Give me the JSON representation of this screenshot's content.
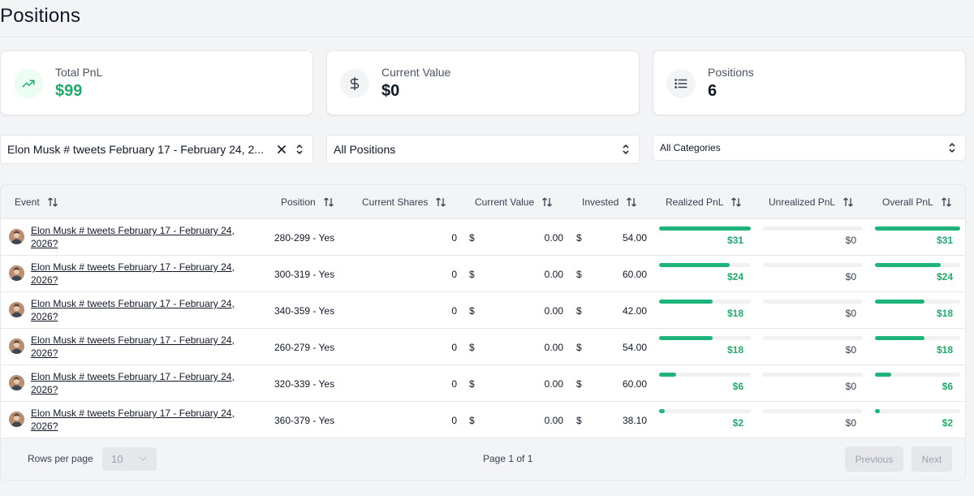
{
  "page": {
    "title": "Positions"
  },
  "stats": {
    "total_pnl": {
      "label": "Total PnL",
      "value": "$99",
      "icon": "trending-up-icon"
    },
    "current_value": {
      "label": "Current Value",
      "value": "$0",
      "icon": "dollar-icon"
    },
    "positions": {
      "label": "Positions",
      "value": "6",
      "icon": "list-icon"
    }
  },
  "filters": {
    "event": "Elon Musk # tweets February 17 - February 24, 2...",
    "positions": "All Positions",
    "categories": "All Categories"
  },
  "table": {
    "headers": {
      "event": "Event",
      "position": "Position",
      "current_shares": "Current Shares",
      "current_value": "Current Value",
      "invested": "Invested",
      "realized_pnl": "Realized PnL",
      "unrealized_pnl": "Unrealized PnL",
      "overall_pnl": "Overall PnL"
    },
    "currency_symbol": "$",
    "rows": [
      {
        "event": "Elon Musk # tweets February 17 - February 24, 2026?",
        "position": "280-299 - Yes",
        "shares": "0",
        "value": "0.00",
        "invested": "54.00",
        "realized": "$31",
        "realized_level": 1.0,
        "unrealized": "$0",
        "overall": "$31",
        "overall_level": 1.0
      },
      {
        "event": "Elon Musk # tweets February 17 - February 24, 2026?",
        "position": "300-319 - Yes",
        "shares": "0",
        "value": "0.00",
        "invested": "60.00",
        "realized": "$24",
        "realized_level": 0.77,
        "unrealized": "$0",
        "overall": "$24",
        "overall_level": 0.77
      },
      {
        "event": "Elon Musk # tweets February 17 - February 24, 2026?",
        "position": "340-359 - Yes",
        "shares": "0",
        "value": "0.00",
        "invested": "42.00",
        "realized": "$18",
        "realized_level": 0.58,
        "unrealized": "$0",
        "overall": "$18",
        "overall_level": 0.58
      },
      {
        "event": "Elon Musk # tweets February 17 - February 24, 2026?",
        "position": "260-279 - Yes",
        "shares": "0",
        "value": "0.00",
        "invested": "54.00",
        "realized": "$18",
        "realized_level": 0.58,
        "unrealized": "$0",
        "overall": "$18",
        "overall_level": 0.58
      },
      {
        "event": "Elon Musk # tweets February 17 - February 24, 2026?",
        "position": "320-339 - Yes",
        "shares": "0",
        "value": "0.00",
        "invested": "60.00",
        "realized": "$6",
        "realized_level": 0.19,
        "unrealized": "$0",
        "overall": "$6",
        "overall_level": 0.19
      },
      {
        "event": "Elon Musk # tweets February 17 - February 24, 2026?",
        "position": "360-379 - Yes",
        "shares": "0",
        "value": "0.00",
        "invested": "38.10",
        "realized": "$2",
        "realized_level": 0.06,
        "unrealized": "$0",
        "overall": "$2",
        "overall_level": 0.06
      }
    ]
  },
  "footer": {
    "rows_per_page_label": "Rows per page",
    "rows_per_page": "10",
    "page_info": "Page 1 of 1",
    "previous": "Previous",
    "next": "Next"
  },
  "colors": {
    "accent_green": "#1eb37a",
    "pnl_text_green": "#22a86b"
  }
}
